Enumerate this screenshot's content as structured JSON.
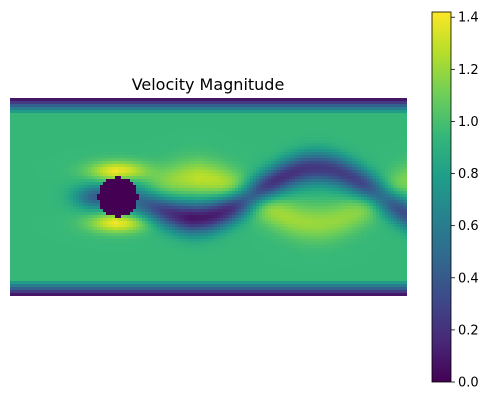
{
  "chart_data": {
    "type": "heatmap",
    "title": "Velocity Magnitude",
    "xlabel": "",
    "ylabel": "",
    "axes_visible": false,
    "colormap": "viridis",
    "colorbar": {
      "vmin": 0.0,
      "vmax": 1.42,
      "ticks": [
        0.0,
        0.2,
        0.4,
        0.6,
        0.8,
        1.0,
        1.2,
        1.4
      ],
      "tick_labels": [
        "0.0",
        "0.2",
        "0.4",
        "0.6",
        "0.8",
        "1.0",
        "1.2",
        "1.4"
      ],
      "orientation": "vertical",
      "placement": "right"
    },
    "field": {
      "description_of_features": [],
      "freestream": 0.95,
      "cylinder_center": [
        0.25,
        0.5
      ],
      "channel_x": [
        0,
        2.2
      ],
      "channel_y": [
        0,
        0.41
      ]
    },
    "colors": {
      "viridis": [
        "#440154",
        "#482878",
        "#3e4989",
        "#31688e",
        "#26828e",
        "#1f9e89",
        "#35b779",
        "#6ece58",
        "#b5de2b",
        "#fde725"
      ]
    }
  }
}
